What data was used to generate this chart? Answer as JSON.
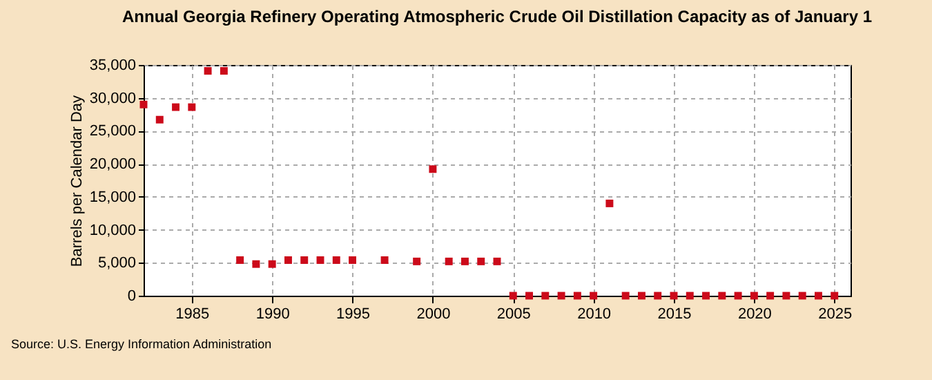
{
  "chart_data": {
    "type": "scatter",
    "title": "Annual Georgia Refinery Operating Atmospheric Crude Oil Distillation Capacity as of January 1",
    "ylabel": "Barrels per Calendar Day",
    "annotations": [
      "Source: U.S. Energy Information Administration"
    ],
    "x": [
      1982,
      1983,
      1984,
      1985,
      1986,
      1987,
      1988,
      1989,
      1990,
      1991,
      1992,
      1993,
      1994,
      1995,
      1997,
      1999,
      2000,
      2001,
      2002,
      2003,
      2004,
      2005,
      2006,
      2007,
      2008,
      2009,
      2010,
      2011,
      2012,
      2013,
      2014,
      2015,
      2016,
      2017,
      2018,
      2019,
      2020,
      2021,
      2022,
      2023,
      2024,
      2025
    ],
    "series": [
      {
        "color": "#cc0a1a",
        "values": [
          29000,
          26700,
          28600,
          28600,
          34100,
          34100,
          5400,
          4800,
          4800,
          5400,
          5400,
          5400,
          5400,
          5400,
          5400,
          5200,
          19200,
          5200,
          5200,
          5200,
          5200,
          0,
          0,
          0,
          0,
          0,
          0,
          14000,
          0,
          0,
          0,
          0,
          0,
          0,
          0,
          0,
          0,
          0,
          0,
          0,
          0,
          0
        ]
      }
    ],
    "xlim": [
      1982,
      2026
    ],
    "xticks": [
      1985,
      1990,
      1995,
      2000,
      2005,
      2010,
      2015,
      2020,
      2025
    ],
    "ylim": [
      0,
      35000
    ],
    "yticks": [
      0,
      {
        "value": 5000,
        "label": "5,000"
      },
      {
        "value": 10000,
        "label": "10,000"
      },
      {
        "value": 15000,
        "label": "15,000"
      },
      {
        "value": 20000,
        "label": "20,000"
      },
      {
        "value": 25000,
        "label": "25,000"
      },
      {
        "value": 30000,
        "label": "30,000"
      },
      {
        "value": 35000,
        "label": "35,000"
      }
    ],
    "grid": true,
    "marker": "square"
  }
}
